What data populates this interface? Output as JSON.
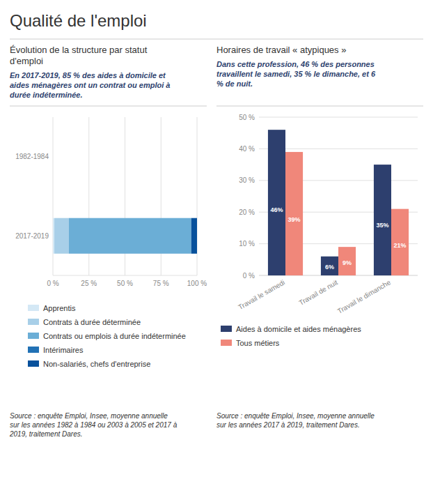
{
  "title": "Qualité de l'emploi",
  "chart_data": [
    {
      "type": "bar",
      "orientation": "horizontal",
      "stacked": true,
      "title": "Évolution de la structure par statut\nd'emploi",
      "subtitle": "En 2017-2019, 85 % des aides à domicile et\naides ménagères ont un contrat ou emploi à\ndurée indéterminée.",
      "annotations": [
        "Source : enquête Emploi, Insee, moyenne annuelle\nsur les années 1982 à 1984 ou 2003 à 2005 et 2017 à\n2019, traitement Dares."
      ],
      "categories": [
        "2017-2019",
        "1982-1984"
      ],
      "series": [
        {
          "name": "Apprentis",
          "color": "#d4e8f5",
          "values": [
            1,
            0
          ]
        },
        {
          "name": "Contrats à durée déterminée",
          "color": "#a8cfe8",
          "values": [
            10,
            0
          ]
        },
        {
          "name": "Contrats ou emplois à durée indéterminée",
          "color": "#6baed6",
          "values": [
            85,
            0
          ]
        },
        {
          "name": "Intérimaires",
          "color": "#2171b5",
          "values": [
            0,
            0
          ]
        },
        {
          "name": "Non-salariés, chefs d'entreprise",
          "color": "#08519c",
          "values": [
            4,
            0
          ]
        }
      ],
      "xlim": [
        0,
        100
      ],
      "xticks": [
        {
          "value": 0,
          "label": "0 %"
        },
        {
          "value": 25,
          "label": "25 %"
        },
        {
          "value": 50,
          "label": "50 %"
        },
        {
          "value": 75,
          "label": "75 %"
        },
        {
          "value": 100,
          "label": "100 %"
        }
      ],
      "grid": true,
      "legend": "bottom"
    },
    {
      "type": "bar",
      "title": "Horaires de travail « atypiques »",
      "subtitle": "Dans cette profession, 46 % des personnes\ntravaillent le samedi, 35 % le dimanche, et 6\n% de nuit.",
      "annotations": [
        "Source : enquête Emploi, Insee, moyenne annuelle\nsur les années 2017 à 2019, traitement Dares."
      ],
      "categories": [
        "Travail le samedi",
        "Travail de nuit",
        "Travail le dimanche"
      ],
      "series": [
        {
          "name": "Aides à domicile et aides ménagères",
          "color": "#2d3f6e",
          "values": [
            46,
            6,
            35
          ],
          "value_labels": [
            "46%",
            "6%",
            "35%"
          ]
        },
        {
          "name": "Tous métiers",
          "color": "#f0877a",
          "values": [
            39,
            9,
            21
          ],
          "value_labels": [
            "39%",
            "9%",
            "21%"
          ]
        }
      ],
      "ylim": [
        0,
        50
      ],
      "yticks": [
        {
          "value": 0,
          "label": "0 %"
        },
        {
          "value": 10,
          "label": "10 %"
        },
        {
          "value": 20,
          "label": "20 %"
        },
        {
          "value": 30,
          "label": "30 %"
        },
        {
          "value": 40,
          "label": "40 %"
        },
        {
          "value": 50,
          "label": "50 %"
        }
      ],
      "grid": true,
      "data_labels": true,
      "legend": "bottom"
    }
  ]
}
